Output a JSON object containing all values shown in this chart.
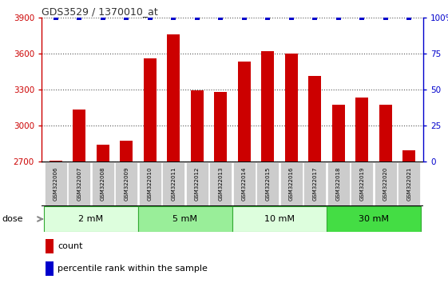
{
  "title": "GDS3529 / 1370010_at",
  "samples": [
    "GSM322006",
    "GSM322007",
    "GSM322008",
    "GSM322009",
    "GSM322010",
    "GSM322011",
    "GSM322012",
    "GSM322013",
    "GSM322014",
    "GSM322015",
    "GSM322016",
    "GSM322017",
    "GSM322018",
    "GSM322019",
    "GSM322020",
    "GSM322021"
  ],
  "counts": [
    2705,
    3130,
    2840,
    2870,
    3560,
    3760,
    3290,
    3280,
    3530,
    3620,
    3600,
    3410,
    3170,
    3230,
    3170,
    2790
  ],
  "percentiles": [
    100,
    100,
    100,
    100,
    100,
    100,
    100,
    100,
    100,
    100,
    100,
    100,
    100,
    100,
    100,
    100
  ],
  "bar_color": "#cc0000",
  "percentile_color": "#0000cc",
  "ylim_left": [
    2700,
    3900
  ],
  "ylim_right": [
    0,
    100
  ],
  "yticks_left": [
    2700,
    3000,
    3300,
    3600,
    3900
  ],
  "yticks_right": [
    0,
    25,
    50,
    75,
    100
  ],
  "dose_groups": [
    {
      "label": "2 mM",
      "start": 0,
      "end": 4,
      "color": "#ddfedd"
    },
    {
      "label": "5 mM",
      "start": 4,
      "end": 8,
      "color": "#99ee99"
    },
    {
      "label": "10 mM",
      "start": 8,
      "end": 12,
      "color": "#ddfedd"
    },
    {
      "label": "30 mM",
      "start": 12,
      "end": 16,
      "color": "#44dd44"
    }
  ],
  "legend_count_label": "count",
  "legend_percentile_label": "percentile rank within the sample",
  "bg_color": "#ffffff",
  "sample_bg": "#cccccc",
  "left_axis_color": "#cc0000",
  "right_axis_color": "#0000cc",
  "bar_width": 0.55,
  "n_samples": 16
}
